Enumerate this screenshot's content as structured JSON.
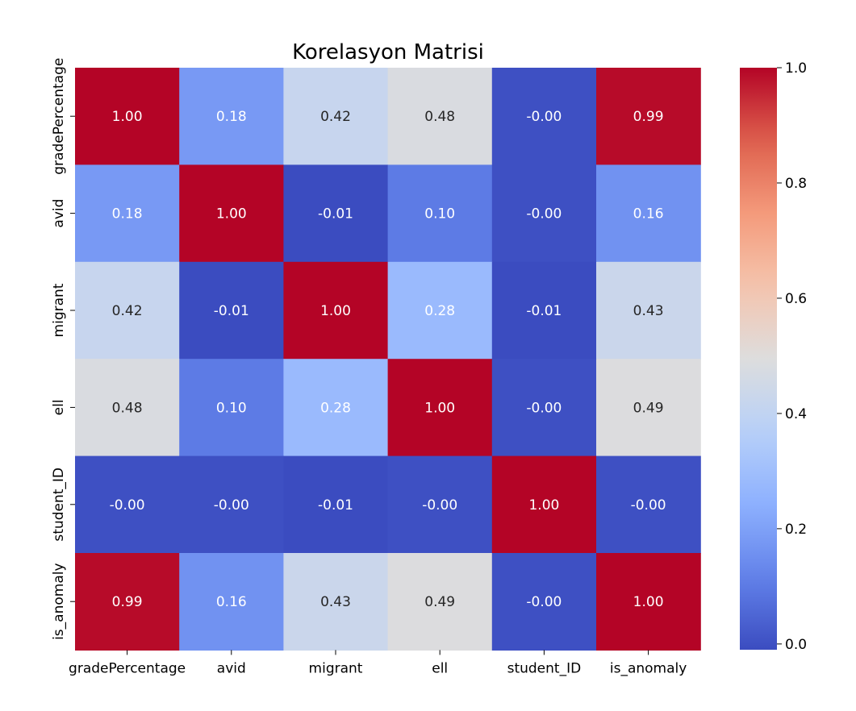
{
  "chart_data": {
    "type": "heatmap",
    "title": "Korelasyon Matrisi",
    "x_labels": [
      "gradePercentage",
      "avid",
      "migrant",
      "ell",
      "student_ID",
      "is_anomaly"
    ],
    "y_labels": [
      "gradePercentage",
      "avid",
      "migrant",
      "ell",
      "student_ID",
      "is_anomaly"
    ],
    "values": [
      [
        1.0,
        0.18,
        0.42,
        0.48,
        -0.0,
        0.99
      ],
      [
        0.18,
        1.0,
        -0.01,
        0.1,
        -0.0,
        0.16
      ],
      [
        0.42,
        -0.01,
        1.0,
        0.28,
        -0.01,
        0.43
      ],
      [
        0.48,
        0.1,
        0.28,
        1.0,
        -0.0,
        0.49
      ],
      [
        -0.0,
        -0.0,
        -0.01,
        -0.0,
        1.0,
        -0.0
      ],
      [
        0.99,
        0.16,
        0.43,
        0.49,
        -0.0,
        1.0
      ]
    ],
    "annotations": [
      [
        "1.00",
        "0.18",
        "0.42",
        "0.48",
        "-0.00",
        "0.99"
      ],
      [
        "0.18",
        "1.00",
        "-0.01",
        "0.10",
        "-0.00",
        "0.16"
      ],
      [
        "0.42",
        "-0.01",
        "1.00",
        "0.28",
        "-0.01",
        "0.43"
      ],
      [
        "0.48",
        "0.10",
        "0.28",
        "1.00",
        "-0.00",
        "0.49"
      ],
      [
        "-0.00",
        "-0.00",
        "-0.01",
        "-0.00",
        "1.00",
        "-0.00"
      ],
      [
        "0.99",
        "0.16",
        "0.43",
        "0.49",
        "-0.00",
        "1.00"
      ]
    ],
    "colormap": "coolwarm",
    "vmin": -0.01,
    "vmax": 1.0,
    "colorbar_ticks": [
      "0.0",
      "0.2",
      "0.4",
      "0.6",
      "0.8",
      "1.0"
    ],
    "colorbar_tick_values": [
      0.0,
      0.2,
      0.4,
      0.6,
      0.8,
      1.0
    ],
    "colorbar_position": "right"
  }
}
